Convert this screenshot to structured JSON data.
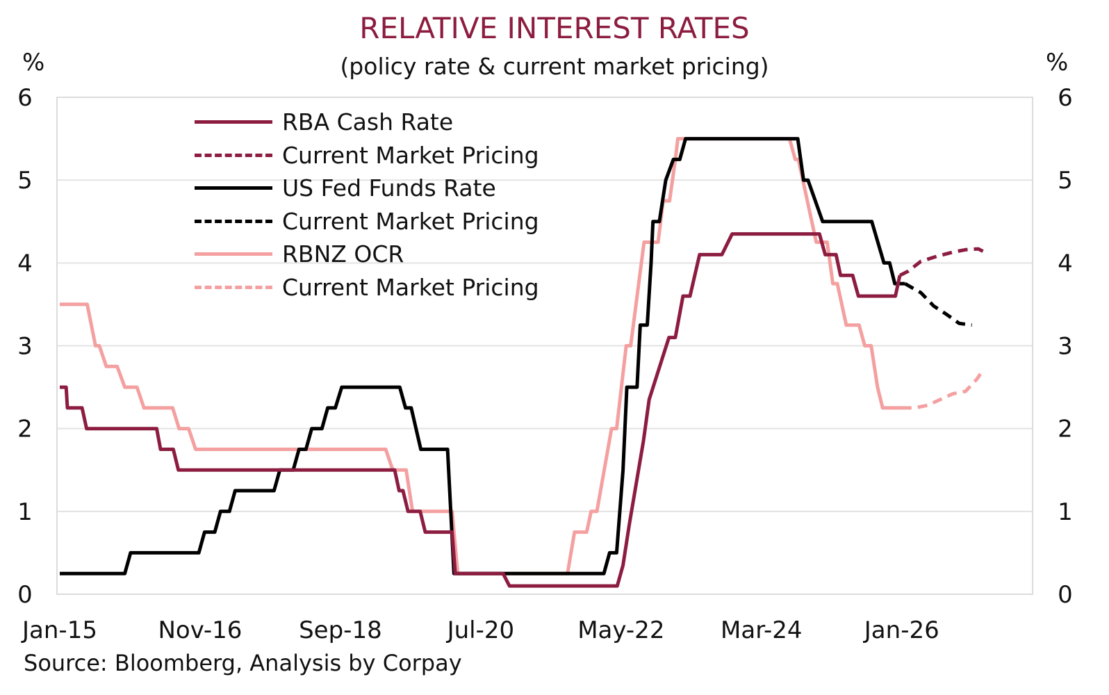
{
  "chart_data": {
    "type": "line",
    "title": "RELATIVE INTEREST RATES",
    "subtitle": "(policy rate & current market pricing)",
    "ylabel_left": "%",
    "ylabel_right": "%",
    "xlabel": "",
    "ylim": [
      0,
      6
    ],
    "yticks": [
      0,
      1,
      2,
      3,
      4,
      5,
      6
    ],
    "grid": true,
    "legend_position": "top-left",
    "x_unit": "months since Jan-15",
    "xlim": [
      0,
      152
    ],
    "xticks": [
      {
        "month": 0,
        "label": "Jan-15"
      },
      {
        "month": 22,
        "label": "Nov-16"
      },
      {
        "month": 44,
        "label": "Sep-18"
      },
      {
        "month": 66,
        "label": "Jul-20"
      },
      {
        "month": 88,
        "label": "May-22"
      },
      {
        "month": 110,
        "label": "Mar-24"
      },
      {
        "month": 132,
        "label": "Jan-26"
      }
    ],
    "source": "Source: Bloomberg, Analysis by Corpay",
    "series": [
      {
        "name": "RBA Cash Rate",
        "color": "#8c1d40",
        "dashed": false,
        "points": [
          [
            0,
            2.5
          ],
          [
            1,
            2.5
          ],
          [
            1.2,
            2.25
          ],
          [
            3.5,
            2.25
          ],
          [
            4.2,
            2.0
          ],
          [
            15.2,
            2.0
          ],
          [
            15.8,
            1.75
          ],
          [
            17.8,
            1.75
          ],
          [
            18.6,
            1.5
          ],
          [
            52.5,
            1.5
          ],
          [
            53.2,
            1.25
          ],
          [
            53.8,
            1.25
          ],
          [
            54.6,
            1.0
          ],
          [
            56.5,
            1.0
          ],
          [
            57.3,
            0.75
          ],
          [
            61.5,
            0.75
          ],
          [
            62,
            0.25
          ],
          [
            69.5,
            0.25
          ],
          [
            70.5,
            0.1
          ],
          [
            87.4,
            0.1
          ],
          [
            88.3,
            0.35
          ],
          [
            89.3,
            0.85
          ],
          [
            90.4,
            1.35
          ],
          [
            91.5,
            1.85
          ],
          [
            92.4,
            2.35
          ],
          [
            95.5,
            3.1
          ],
          [
            96.5,
            3.1
          ],
          [
            97.7,
            3.6
          ],
          [
            98.8,
            3.6
          ],
          [
            100.3,
            4.1
          ],
          [
            103.8,
            4.1
          ],
          [
            105.4,
            4.35
          ],
          [
            119.1,
            4.35
          ],
          [
            120,
            4.1
          ],
          [
            121.7,
            4.1
          ],
          [
            122.4,
            3.85
          ],
          [
            124.3,
            3.85
          ],
          [
            125.2,
            3.6
          ],
          [
            131,
            3.6
          ],
          [
            131.7,
            3.85
          ]
        ]
      },
      {
        "name": "Current Market Pricing",
        "series_of": "RBA Cash Rate",
        "color": "#8c1d40",
        "dashed": true,
        "points": [
          [
            131.7,
            3.85
          ],
          [
            133,
            3.9
          ],
          [
            135,
            4.02
          ],
          [
            137.5,
            4.08
          ],
          [
            140,
            4.13
          ],
          [
            142,
            4.16
          ],
          [
            144,
            4.17
          ],
          [
            145,
            4.13
          ]
        ]
      },
      {
        "name": "US Fed Funds Rate",
        "color": "#000000",
        "dashed": false,
        "points": [
          [
            0,
            0.25
          ],
          [
            10.2,
            0.25
          ],
          [
            11.1,
            0.5
          ],
          [
            21.8,
            0.5
          ],
          [
            22.7,
            0.75
          ],
          [
            24.3,
            0.75
          ],
          [
            25.2,
            1.0
          ],
          [
            26.6,
            1.0
          ],
          [
            27.5,
            1.25
          ],
          [
            33.6,
            1.25
          ],
          [
            34.5,
            1.5
          ],
          [
            36.6,
            1.5
          ],
          [
            37.5,
            1.75
          ],
          [
            38.6,
            1.75
          ],
          [
            39.5,
            2.0
          ],
          [
            41.1,
            2.0
          ],
          [
            42,
            2.25
          ],
          [
            43.2,
            2.25
          ],
          [
            44.2,
            2.5
          ],
          [
            53.3,
            2.5
          ],
          [
            54.2,
            2.25
          ],
          [
            55.1,
            2.25
          ],
          [
            56.6,
            1.75
          ],
          [
            60.8,
            1.75
          ],
          [
            61.8,
            0.25
          ],
          [
            85.3,
            0.25
          ],
          [
            86.2,
            0.5
          ],
          [
            87.3,
            0.5
          ],
          [
            87.8,
            1.0
          ],
          [
            88.3,
            1.5
          ],
          [
            88.9,
            2.5
          ],
          [
            90.5,
            2.5
          ],
          [
            91,
            3.25
          ],
          [
            92.1,
            3.25
          ],
          [
            92.7,
            4.0
          ],
          [
            93,
            4.5
          ],
          [
            94,
            4.5
          ],
          [
            95,
            5.0
          ],
          [
            96.2,
            5.25
          ],
          [
            97.2,
            5.25
          ],
          [
            98.1,
            5.5
          ],
          [
            115.7,
            5.5
          ],
          [
            116.6,
            5.0
          ],
          [
            117.3,
            5.0
          ],
          [
            119.6,
            4.5
          ],
          [
            127.3,
            4.5
          ],
          [
            129.2,
            4.0
          ],
          [
            130.1,
            4.0
          ],
          [
            130.9,
            3.75
          ],
          [
            132.5,
            3.75
          ]
        ]
      },
      {
        "name": "Current Market Pricing",
        "series_of": "US Fed Funds Rate",
        "color": "#000000",
        "dashed": true,
        "points": [
          [
            132.5,
            3.75
          ],
          [
            135,
            3.64
          ],
          [
            137,
            3.48
          ],
          [
            139,
            3.38
          ],
          [
            141,
            3.27
          ],
          [
            143,
            3.25
          ]
        ]
      },
      {
        "name": "RBNZ OCR",
        "color": "#f4a0a0",
        "dashed": false,
        "points": [
          [
            0,
            3.5
          ],
          [
            4.3,
            3.5
          ],
          [
            5.6,
            3.0
          ],
          [
            6.2,
            3.0
          ],
          [
            7.3,
            2.75
          ],
          [
            9,
            2.75
          ],
          [
            10.2,
            2.5
          ],
          [
            12.1,
            2.5
          ],
          [
            13.2,
            2.25
          ],
          [
            17.7,
            2.25
          ],
          [
            18.7,
            2.0
          ],
          [
            20.2,
            2.0
          ],
          [
            21.3,
            1.75
          ],
          [
            51.1,
            1.75
          ],
          [
            52.2,
            1.5
          ],
          [
            54.3,
            1.5
          ],
          [
            55.3,
            1.0
          ],
          [
            61.5,
            1.0
          ],
          [
            62.4,
            0.25
          ],
          [
            79.6,
            0.25
          ],
          [
            80.7,
            0.75
          ],
          [
            82.6,
            0.75
          ],
          [
            83.3,
            1.0
          ],
          [
            84.2,
            1.0
          ],
          [
            86.5,
            2.0
          ],
          [
            87.3,
            2.0
          ],
          [
            88.8,
            3.0
          ],
          [
            89.5,
            3.0
          ],
          [
            91.6,
            4.25
          ],
          [
            93.8,
            4.25
          ],
          [
            94.6,
            4.75
          ],
          [
            95.6,
            4.75
          ],
          [
            96.5,
            5.25
          ],
          [
            96.9,
            5.5
          ],
          [
            114.4,
            5.5
          ],
          [
            115.3,
            5.25
          ],
          [
            115.8,
            5.25
          ],
          [
            118.6,
            4.25
          ],
          [
            120.3,
            4.25
          ],
          [
            121.2,
            3.75
          ],
          [
            121.9,
            3.75
          ],
          [
            123.3,
            3.25
          ],
          [
            125.3,
            3.25
          ],
          [
            126.2,
            3.0
          ],
          [
            127.2,
            3.0
          ],
          [
            128.2,
            2.5
          ],
          [
            129,
            2.25
          ],
          [
            132,
            2.25
          ]
        ]
      },
      {
        "name": "Current Market Pricing",
        "series_of": "RBNZ OCR",
        "color": "#f4a0a0",
        "dashed": true,
        "points": [
          [
            132,
            2.25
          ],
          [
            134,
            2.25
          ],
          [
            136,
            2.28
          ],
          [
            138,
            2.35
          ],
          [
            140,
            2.42
          ],
          [
            142,
            2.45
          ],
          [
            143.8,
            2.6
          ],
          [
            144.5,
            2.68
          ]
        ]
      }
    ]
  },
  "legend": [
    {
      "label": "RBA Cash Rate",
      "color": "#8c1d40",
      "dashed": false
    },
    {
      "label": "Current Market Pricing",
      "color": "#8c1d40",
      "dashed": true
    },
    {
      "label": "US Fed Funds Rate",
      "color": "#000000",
      "dashed": false
    },
    {
      "label": "Current Market Pricing",
      "color": "#000000",
      "dashed": true
    },
    {
      "label": "RBNZ OCR",
      "color": "#f4a0a0",
      "dashed": false
    },
    {
      "label": "Current Market Pricing",
      "color": "#f4a0a0",
      "dashed": true
    }
  ]
}
